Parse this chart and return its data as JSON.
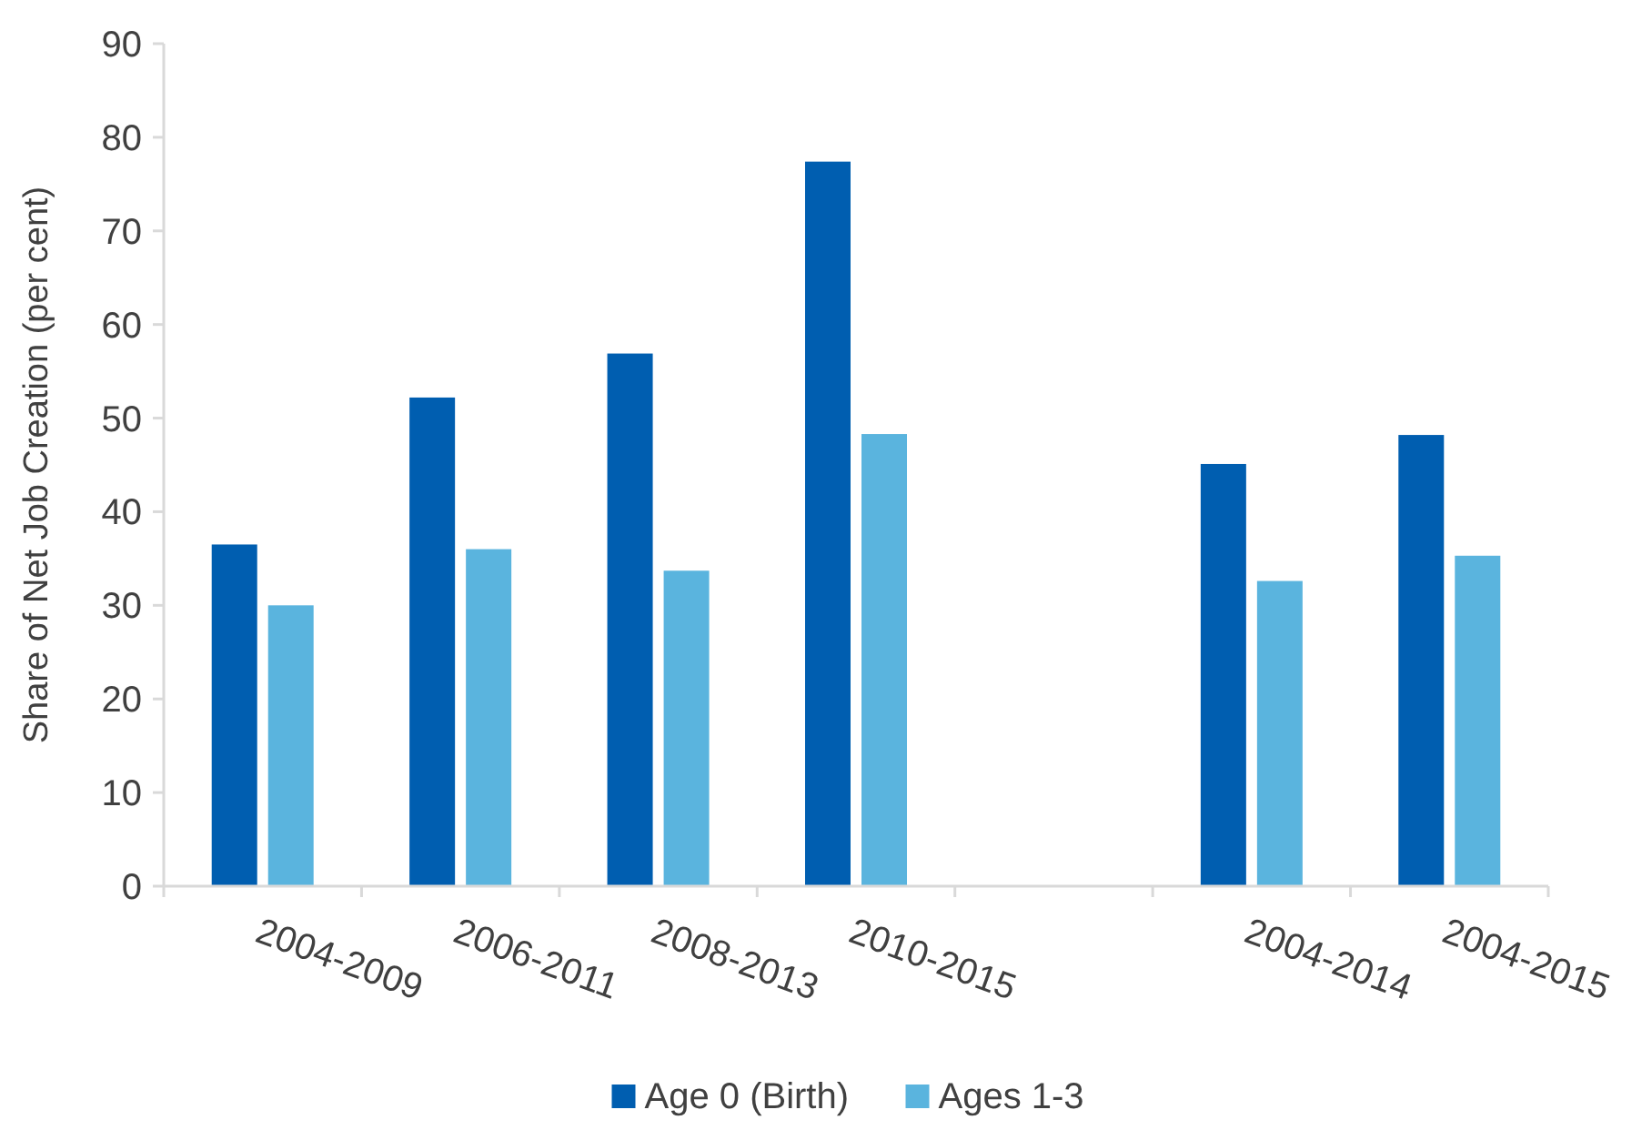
{
  "chart_data": {
    "type": "bar",
    "ylabel": "Share of Net Job Creation (per cent)",
    "categories": [
      "2004-2009",
      "2006-2011",
      "2008-2013",
      "2010-2015",
      null,
      "2004-2014",
      "2004-2015"
    ],
    "series": [
      {
        "name": "Age 0 (Birth)",
        "color": "#005eb0",
        "values": [
          36.5,
          52.2,
          56.9,
          77.4,
          null,
          45.1,
          48.2
        ]
      },
      {
        "name": "Ages 1-3",
        "color": "#5ab4de",
        "values": [
          30.0,
          36.0,
          33.7,
          48.3,
          null,
          32.6,
          35.3
        ]
      }
    ],
    "ylim": [
      0,
      90
    ],
    "yticks": [
      0,
      10,
      20,
      30,
      40,
      50,
      60,
      70,
      80,
      90
    ],
    "grid": false,
    "legend": "bottom"
  }
}
